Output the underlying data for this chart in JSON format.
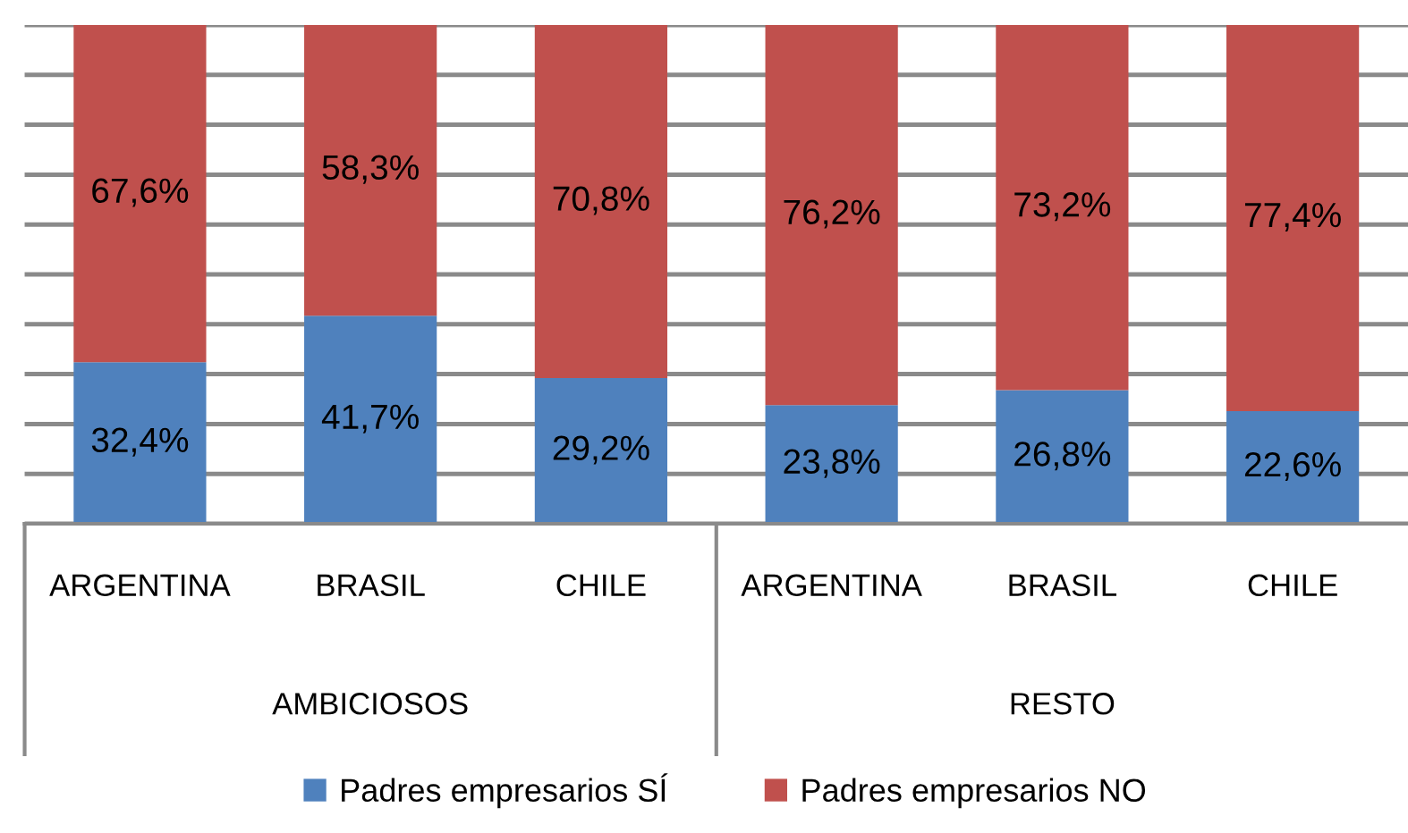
{
  "chart_data": {
    "type": "bar",
    "stacked": true,
    "categories": [
      "ARGENTINA",
      "BRASIL",
      "CHILE",
      "ARGENTINA",
      "BRASIL",
      "CHILE"
    ],
    "series": [
      {
        "name": "Padres empresarios SÍ",
        "color": "#4f81bd",
        "values": [
          32.4,
          41.7,
          29.2,
          23.8,
          26.8,
          22.6
        ],
        "value_labels": [
          "32,4%",
          "41,7%",
          "29,2%",
          "23,8%",
          "26,8%",
          "22,6%"
        ]
      },
      {
        "name": "Padres empresarios NO",
        "color": "#c0504d",
        "values": [
          67.6,
          58.3,
          70.8,
          76.2,
          73.2,
          77.4
        ],
        "value_labels": [
          "67,6%",
          "58,3%",
          "70,8%",
          "76,2%",
          "73,2%",
          "77,4%"
        ]
      }
    ],
    "ylim": [
      0,
      100
    ],
    "yticks": [
      {
        "value": 0,
        "label": null
      },
      {
        "value": 10,
        "label": null
      },
      {
        "value": 20,
        "label": null
      },
      {
        "value": 30,
        "label": null
      },
      {
        "value": 40,
        "label": null
      },
      {
        "value": 50,
        "label": null
      },
      {
        "value": 60,
        "label": null
      },
      {
        "value": 70,
        "label": null
      },
      {
        "value": 80,
        "label": null
      },
      {
        "value": 90,
        "label": null
      },
      {
        "value": 100,
        "label": null
      }
    ],
    "tick_labels": "x",
    "grid": "y",
    "legend": "bottom",
    "annotations": [
      "AMBICIOSOS",
      "RESTO"
    ]
  }
}
